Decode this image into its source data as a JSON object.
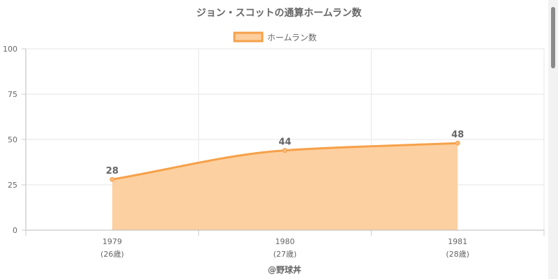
{
  "chart_data": {
    "type": "area",
    "title": "ジョン・スコットの通算ホームラン数",
    "legend": {
      "label": "ホームラン数",
      "position": "top"
    },
    "categories": [
      "1979",
      "1980",
      "1981"
    ],
    "sublabels": [
      "(26歳)",
      "(27歳)",
      "(28歳)"
    ],
    "series": [
      {
        "name": "ホームラン数",
        "values": [
          28,
          44,
          48
        ]
      }
    ],
    "ylim": [
      0,
      100
    ],
    "yticks": [
      0,
      25,
      50,
      75,
      100
    ],
    "grid": true,
    "colors": {
      "line": "#f6a14a",
      "fill": "#fdcd9c",
      "point": "#f8b878"
    },
    "credit": "@野球丼"
  }
}
